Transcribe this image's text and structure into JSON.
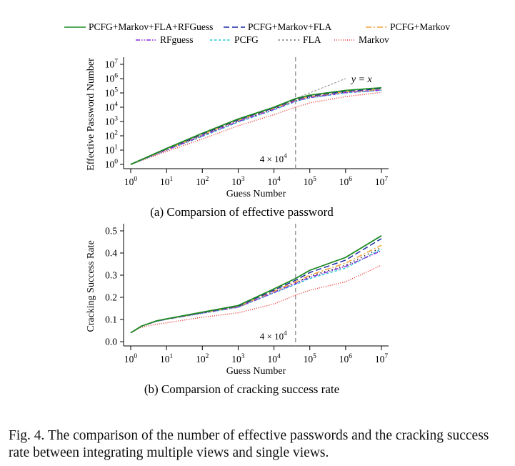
{
  "legend": {
    "placement": "top",
    "entries": [
      {
        "label": "PCFG+Markov+FLA+RFGuess",
        "color": "#1f8b24",
        "dash": "solid"
      },
      {
        "label": "PCFG+Markov+FLA",
        "color": "#1f2aa8",
        "dash": "dashed"
      },
      {
        "label": "PCFG+Markov",
        "color": "#f2a33a",
        "dash": "dashdot"
      },
      {
        "label": "RFguess",
        "color": "#8a2be2",
        "dash": "dashdotdot"
      },
      {
        "label": "PCFG",
        "color": "#2ecbd6",
        "dash": "dashfine"
      },
      {
        "label": "FLA",
        "color": "#222222",
        "dash": "dotted"
      },
      {
        "label": "Markov",
        "color": "#e53935",
        "dash": "dottedfine"
      }
    ]
  },
  "figure_caption": "Fig. 4.  The comparison of the number of effective passwords and the cracking success rate between integrating multiple views and single views.",
  "chart_data": [
    {
      "type": "line",
      "subtitle": "(a) Comparsion of effective password",
      "xlabel": "Guess Number",
      "ylabel": "Effective Password Number",
      "xscale": "log",
      "yscale": "log",
      "xlim": [
        1,
        10000000
      ],
      "ylim": [
        1,
        10000000
      ],
      "x_ticks": [
        {
          "b": "10",
          "e": "0"
        },
        {
          "b": "10",
          "e": "1"
        },
        {
          "b": "10",
          "e": "2"
        },
        {
          "b": "10",
          "e": "3"
        },
        {
          "b": "10",
          "e": "4"
        },
        {
          "b": "10",
          "e": "5"
        },
        {
          "b": "10",
          "e": "6"
        },
        {
          "b": "10",
          "e": "7"
        }
      ],
      "y_ticks": [
        {
          "b": "10",
          "e": "0"
        },
        {
          "b": "10",
          "e": "1"
        },
        {
          "b": "10",
          "e": "2"
        },
        {
          "b": "10",
          "e": "3"
        },
        {
          "b": "10",
          "e": "4"
        },
        {
          "b": "10",
          "e": "5"
        },
        {
          "b": "10",
          "e": "6"
        },
        {
          "b": "10",
          "e": "7"
        }
      ],
      "grid": false,
      "vline": {
        "x": 40000,
        "label": "4 × 10",
        "label_exp": "4"
      },
      "reference": {
        "label": "y = x",
        "x": [
          1000,
          1000000
        ],
        "y": [
          1000,
          1000000
        ]
      },
      "x": [
        1,
        10,
        100,
        1000,
        10000,
        40000,
        100000,
        1000000,
        10000000
      ],
      "series": [
        {
          "name": "PCFG+Markov+FLA+RFGuess",
          "values": [
            1,
            13,
            150,
            1500,
            10000,
            40000,
            70000,
            150000,
            230000
          ]
        },
        {
          "name": "PCFG+Markov+FLA",
          "values": [
            1,
            12,
            130,
            1300,
            9000,
            35000,
            60000,
            130000,
            200000
          ]
        },
        {
          "name": "PCFG+Markov",
          "values": [
            1,
            11,
            120,
            1200,
            8500,
            32000,
            55000,
            120000,
            180000
          ]
        },
        {
          "name": "RFguess",
          "values": [
            1,
            10,
            100,
            1000,
            7000,
            27000,
            47000,
            105000,
            160000
          ]
        },
        {
          "name": "PCFG",
          "values": [
            1,
            10,
            90,
            900,
            6500,
            25000,
            45000,
            100000,
            150000
          ]
        },
        {
          "name": "FLA",
          "values": [
            1,
            11,
            110,
            1100,
            7500,
            29000,
            50000,
            110000,
            170000
          ]
        },
        {
          "name": "Markov",
          "values": [
            1,
            8,
            60,
            500,
            3000,
            10000,
            20000,
            55000,
            110000
          ]
        }
      ]
    },
    {
      "type": "line",
      "subtitle": "(b) Comparsion of cracking success rate",
      "xlabel": "Guess Number",
      "ylabel": "Cracking Success Rate",
      "xscale": "log",
      "yscale": "linear",
      "xlim": [
        1,
        10000000
      ],
      "ylim": [
        0,
        0.5
      ],
      "x_ticks": [
        {
          "b": "10",
          "e": "0"
        },
        {
          "b": "10",
          "e": "1"
        },
        {
          "b": "10",
          "e": "2"
        },
        {
          "b": "10",
          "e": "3"
        },
        {
          "b": "10",
          "e": "4"
        },
        {
          "b": "10",
          "e": "5"
        },
        {
          "b": "10",
          "e": "6"
        },
        {
          "b": "10",
          "e": "7"
        }
      ],
      "y_ticks": [
        "0.0",
        "0.1",
        "0.2",
        "0.3",
        "0.4",
        "0.5"
      ],
      "grid": false,
      "vline": {
        "x": 40000,
        "label": "4 × 10",
        "label_exp": "4"
      },
      "x": [
        1,
        2,
        5,
        10,
        100,
        1000,
        10000,
        40000,
        100000,
        1000000,
        10000000
      ],
      "series": [
        {
          "name": "PCFG+Markov+FLA+RFGuess",
          "values": [
            0.04,
            0.07,
            0.093,
            0.103,
            0.133,
            0.163,
            0.238,
            0.285,
            0.322,
            0.38,
            0.478
          ]
        },
        {
          "name": "PCFG+Markov+FLA",
          "values": [
            0.04,
            0.07,
            0.092,
            0.102,
            0.131,
            0.16,
            0.232,
            0.277,
            0.312,
            0.368,
            0.465
          ]
        },
        {
          "name": "PCFG+Markov",
          "values": [
            0.04,
            0.07,
            0.092,
            0.102,
            0.13,
            0.158,
            0.228,
            0.27,
            0.3,
            0.355,
            0.435
          ]
        },
        {
          "name": "RFguess",
          "values": [
            0.04,
            0.07,
            0.091,
            0.101,
            0.129,
            0.156,
            0.222,
            0.262,
            0.29,
            0.34,
            0.41
          ]
        },
        {
          "name": "PCFG",
          "values": [
            0.04,
            0.07,
            0.091,
            0.101,
            0.128,
            0.155,
            0.22,
            0.258,
            0.285,
            0.332,
            0.418
          ]
        },
        {
          "name": "FLA",
          "values": [
            0.04,
            0.07,
            0.092,
            0.102,
            0.13,
            0.157,
            0.225,
            0.265,
            0.295,
            0.345,
            0.425
          ]
        },
        {
          "name": "Markov",
          "values": [
            0.04,
            0.065,
            0.078,
            0.085,
            0.11,
            0.13,
            0.17,
            0.21,
            0.232,
            0.27,
            0.345
          ]
        }
      ]
    }
  ]
}
